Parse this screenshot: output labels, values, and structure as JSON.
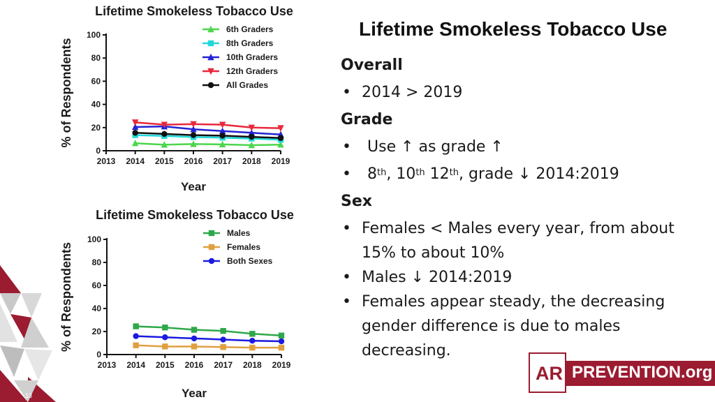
{
  "slide": {
    "title": "Lifetime Smokeless Tobacco Use",
    "page_number": "13",
    "logo": {
      "ar": "AR",
      "org": "PREVENTION.org",
      "accent": "#9b1b30"
    }
  },
  "text": {
    "overall_heading": "Overall",
    "overall_bullets": [
      "2014 > 2019"
    ],
    "grade_heading": "Grade",
    "grade_bullet_1": "Use ↑ as grade ↑",
    "grade_bullet_2": {
      "p1": "8",
      "s1": "th",
      "p2": ", 10",
      "s2": "th",
      "p3": " 12",
      "s3": "th",
      "p4": ", grade ↓ 2014:2019"
    },
    "sex_heading": "Sex",
    "sex_bullets": [
      "Females < Males every year, from about 15% to about 10%",
      "Males ↓ 2014:2019",
      "Females appear steady, the decreasing gender difference is due to males decreasing."
    ]
  },
  "chart_data": [
    {
      "type": "line",
      "title": "Lifetime Smokeless Tobacco Use",
      "xlabel": "Year",
      "ylabel": "% of Respondents",
      "x": [
        2014,
        2015,
        2016,
        2017,
        2018,
        2019
      ],
      "xticks": [
        2013,
        2014,
        2015,
        2016,
        2017,
        2018,
        2019
      ],
      "ylim": [
        0,
        100
      ],
      "yticks": [
        0,
        20,
        40,
        60,
        80,
        100
      ],
      "legend_position": "top-right",
      "series": [
        {
          "name": "6th Graders",
          "color": "#4cd64c",
          "marker": "triangle-up",
          "values": [
            6.5,
            5.2,
            5.8,
            5.5,
            4.8,
            5.3
          ]
        },
        {
          "name": "8th Graders",
          "color": "#22d8d8",
          "marker": "square",
          "values": [
            13.5,
            12.8,
            11.8,
            11.3,
            10.5,
            9.5
          ]
        },
        {
          "name": "10th Graders",
          "color": "#2323d4",
          "marker": "triangle-up",
          "values": [
            20.5,
            21.0,
            18.5,
            17.0,
            15.5,
            14.0
          ]
        },
        {
          "name": "12th Graders",
          "color": "#e8283c",
          "marker": "triangle-down",
          "values": [
            24.5,
            22.5,
            23.0,
            22.5,
            20.0,
            19.5
          ]
        },
        {
          "name": "All Grades",
          "color": "#111111",
          "marker": "circle",
          "values": [
            15.5,
            14.5,
            13.5,
            13.0,
            12.0,
            11.0
          ]
        }
      ]
    },
    {
      "type": "line",
      "title": "Lifetime Smokeless Tobacco Use",
      "xlabel": "Year",
      "ylabel": "% of Respondents",
      "x": [
        2014,
        2015,
        2016,
        2017,
        2018,
        2019
      ],
      "xticks": [
        2013,
        2014,
        2015,
        2016,
        2017,
        2018,
        2019
      ],
      "ylim": [
        0,
        100
      ],
      "yticks": [
        0,
        20,
        40,
        60,
        80,
        100
      ],
      "legend_position": "top-right",
      "series": [
        {
          "name": "Males",
          "color": "#2ea84a",
          "marker": "square",
          "values": [
            24.5,
            23.5,
            21.5,
            20.5,
            18.0,
            16.5
          ]
        },
        {
          "name": "Females",
          "color": "#e0a040",
          "marker": "square",
          "values": [
            8.0,
            7.0,
            7.0,
            6.5,
            6.0,
            6.0
          ]
        },
        {
          "name": "Both Sexes",
          "color": "#1a1ae0",
          "marker": "circle",
          "values": [
            16.0,
            15.0,
            14.0,
            13.0,
            12.0,
            11.5
          ]
        }
      ]
    }
  ]
}
